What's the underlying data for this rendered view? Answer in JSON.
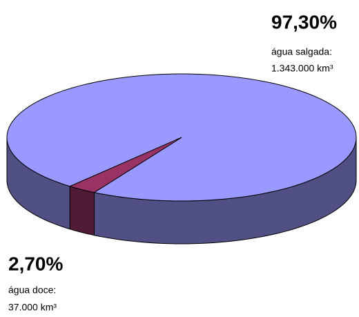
{
  "chart_data": {
    "type": "pie",
    "categories": [
      "água salgada:",
      "água doce:"
    ],
    "values": [
      97.3,
      2.7
    ],
    "value_labels": [
      "97,30%",
      "2,70%"
    ],
    "volume_labels": [
      "1.343.000 km³",
      "37.000 km³"
    ],
    "colors": [
      "#9999ff",
      "#993366"
    ]
  }
}
